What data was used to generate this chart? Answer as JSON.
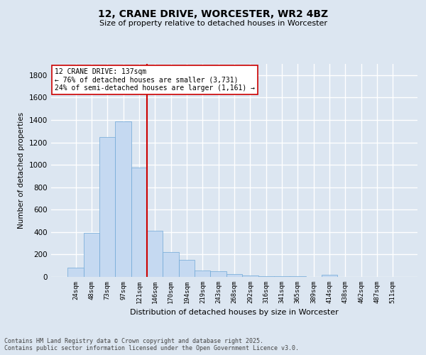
{
  "title1": "12, CRANE DRIVE, WORCESTER, WR2 4BZ",
  "title2": "Size of property relative to detached houses in Worcester",
  "xlabel": "Distribution of detached houses by size in Worcester",
  "ylabel": "Number of detached properties",
  "categories": [
    "24sqm",
    "48sqm",
    "73sqm",
    "97sqm",
    "121sqm",
    "146sqm",
    "170sqm",
    "194sqm",
    "219sqm",
    "243sqm",
    "268sqm",
    "292sqm",
    "316sqm",
    "341sqm",
    "365sqm",
    "389sqm",
    "414sqm",
    "438sqm",
    "462sqm",
    "487sqm",
    "511sqm"
  ],
  "values": [
    80,
    390,
    1250,
    1390,
    975,
    410,
    220,
    155,
    60,
    50,
    25,
    10,
    5,
    5,
    5,
    3,
    20,
    3,
    3,
    3,
    3
  ],
  "bar_color": "#c5d9f1",
  "bar_edge_color": "#6fa8d6",
  "background_color": "#dce6f1",
  "grid_color": "#ffffff",
  "vline_x_index": 4.5,
  "vline_color": "#cc0000",
  "annotation_text": "12 CRANE DRIVE: 137sqm\n← 76% of detached houses are smaller (3,731)\n24% of semi-detached houses are larger (1,161) →",
  "annotation_box_color": "#ffffff",
  "annotation_box_edge": "#cc0000",
  "ylim": [
    0,
    1900
  ],
  "yticks": [
    0,
    200,
    400,
    600,
    800,
    1000,
    1200,
    1400,
    1600,
    1800
  ],
  "footer1": "Contains HM Land Registry data © Crown copyright and database right 2025.",
  "footer2": "Contains public sector information licensed under the Open Government Licence v3.0."
}
